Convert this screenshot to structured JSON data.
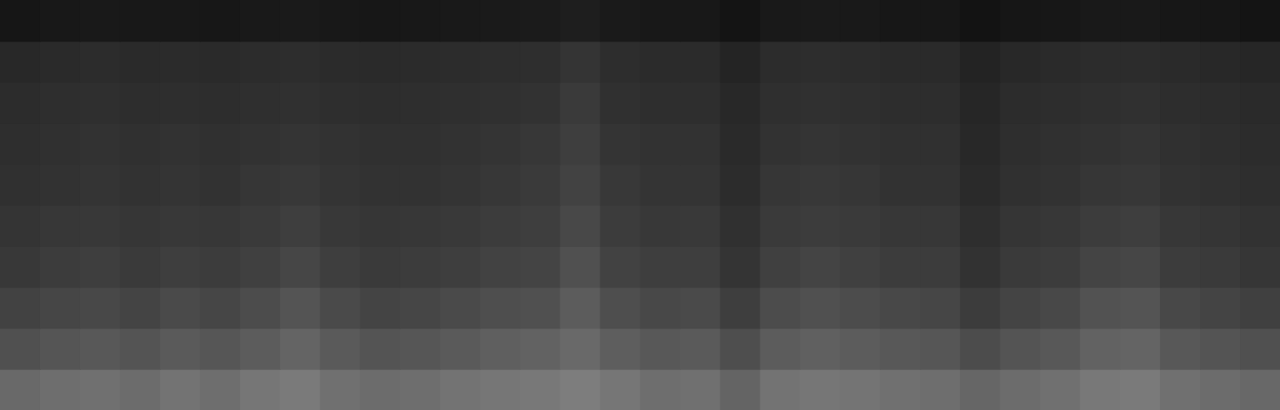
{
  "chart_data": {
    "type": "heatmap",
    "xlim": [
      0,
      32
    ],
    "ylim": [
      0,
      10
    ],
    "tick_labels": false,
    "cells": [
      [
        105,
        110,
        112,
        108,
        115,
        110,
        118,
        122,
        112,
        108,
        110,
        115,
        118,
        120,
        125,
        118,
        110,
        112,
        100,
        115,
        118,
        116,
        112,
        110,
        102,
        108,
        112,
        120,
        122,
        112,
        108,
        104
      ],
      [
        80,
        85,
        88,
        84,
        90,
        86,
        92,
        100,
        90,
        84,
        86,
        90,
        95,
        98,
        105,
        94,
        88,
        90,
        78,
        92,
        96,
        92,
        88,
        86,
        76,
        84,
        88,
        98,
        100,
        88,
        84,
        80
      ],
      [
        66,
        70,
        72,
        68,
        74,
        70,
        76,
        84,
        74,
        68,
        70,
        74,
        78,
        80,
        92,
        78,
        72,
        74,
        62,
        76,
        80,
        76,
        72,
        70,
        60,
        68,
        72,
        82,
        84,
        72,
        68,
        64
      ],
      [
        56,
        60,
        62,
        58,
        62,
        60,
        64,
        70,
        62,
        58,
        60,
        62,
        66,
        68,
        80,
        66,
        62,
        62,
        52,
        64,
        68,
        64,
        60,
        60,
        50,
        58,
        60,
        68,
        70,
        60,
        58,
        54
      ],
      [
        52,
        55,
        56,
        54,
        56,
        55,
        58,
        62,
        56,
        54,
        55,
        57,
        60,
        62,
        72,
        60,
        56,
        57,
        48,
        58,
        60,
        58,
        55,
        55,
        46,
        53,
        55,
        60,
        62,
        55,
        53,
        50
      ],
      [
        48,
        50,
        52,
        50,
        52,
        50,
        54,
        56,
        52,
        50,
        50,
        52,
        55,
        58,
        66,
        56,
        52,
        52,
        44,
        54,
        56,
        54,
        50,
        50,
        42,
        48,
        50,
        54,
        55,
        50,
        48,
        46
      ],
      [
        46,
        48,
        50,
        48,
        50,
        48,
        50,
        52,
        50,
        48,
        48,
        50,
        52,
        55,
        62,
        52,
        50,
        50,
        42,
        50,
        52,
        50,
        48,
        48,
        40,
        46,
        48,
        50,
        52,
        48,
        46,
        44
      ],
      [
        44,
        46,
        47,
        45,
        46,
        45,
        47,
        48,
        46,
        45,
        46,
        47,
        48,
        50,
        58,
        48,
        46,
        46,
        40,
        47,
        48,
        47,
        45,
        45,
        38,
        44,
        45,
        47,
        48,
        45,
        44,
        42
      ],
      [
        40,
        42,
        44,
        42,
        43,
        42,
        44,
        45,
        43,
        42,
        43,
        44,
        45,
        46,
        52,
        45,
        43,
        43,
        36,
        44,
        45,
        44,
        42,
        42,
        35,
        40,
        42,
        44,
        44,
        42,
        40,
        38
      ],
      [
        22,
        24,
        25,
        24,
        24,
        23,
        25,
        26,
        24,
        23,
        24,
        25,
        26,
        27,
        30,
        26,
        24,
        24,
        20,
        25,
        26,
        25,
        23,
        23,
        19,
        22,
        23,
        25,
        25,
        23,
        22,
        20
      ]
    ]
  }
}
